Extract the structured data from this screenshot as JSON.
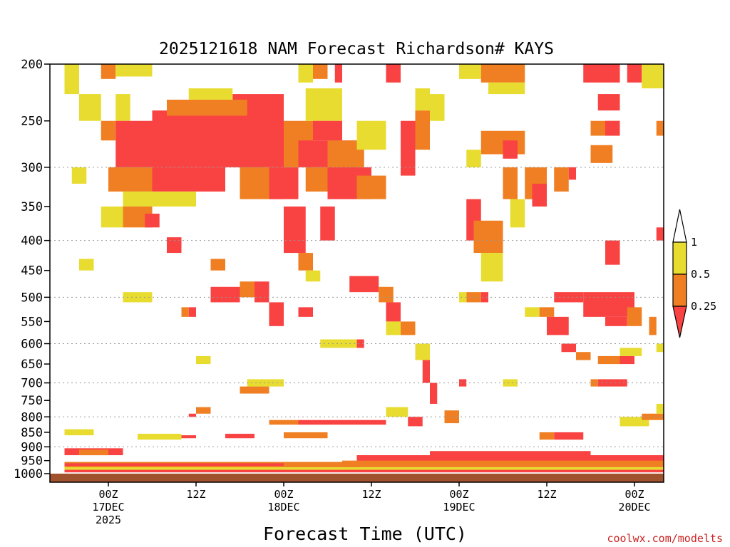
{
  "chart_data": {
    "type": "heatmap",
    "title": "2025121618 NAM Forecast Richardson# KAYS",
    "xlabel": "Forecast Time (UTC)",
    "ylabel": "",
    "credit": "coolwx.com/modelts",
    "y_scale": "log-pressure",
    "ylim": [
      1000,
      200
    ],
    "y_ticks": [
      "200",
      "250",
      "300",
      "350",
      "400",
      "450",
      "500",
      "550",
      "600",
      "650",
      "700",
      "750",
      "800",
      "850",
      "900",
      "950",
      "1000"
    ],
    "y_gridlines": [
      300,
      400,
      500,
      600,
      700,
      800,
      900
    ],
    "x_unit": "hours since 2025-12-16 18Z",
    "xlim": [
      -2,
      82
    ],
    "x_ticks": [
      {
        "hour": 6,
        "lines": [
          "00Z",
          "17DEC",
          "2025"
        ]
      },
      {
        "hour": 18,
        "lines": [
          "12Z"
        ]
      },
      {
        "hour": 30,
        "lines": [
          "00Z",
          "18DEC"
        ]
      },
      {
        "hour": 42,
        "lines": [
          "12Z"
        ]
      },
      {
        "hour": 54,
        "lines": [
          "00Z",
          "19DEC"
        ]
      },
      {
        "hour": 66,
        "lines": [
          "12Z"
        ]
      },
      {
        "hour": 78,
        "lines": [
          "00Z",
          "20DEC"
        ]
      }
    ],
    "colorbar": {
      "levels": [
        "1",
        "0.5",
        "0.25"
      ],
      "bins": [
        {
          "range": "> 1",
          "color": "#ffffff"
        },
        {
          "range": "0.5 - 1",
          "color": "#e8dc30"
        },
        {
          "range": "0.25 - 0.5",
          "color": "#ef7f22"
        },
        {
          "range": "< 0.25",
          "color": "#f94242"
        }
      ]
    },
    "ground_color": "#a0522d",
    "category_colors": {
      "y": "#e8dc30",
      "o": "#ef7f22",
      "r": "#f94242"
    },
    "regions": [
      {
        "cat": "y",
        "t0": 0,
        "t1": 2,
        "p0": 200,
        "p1": 225
      },
      {
        "cat": "y",
        "t0": 2,
        "t1": 5,
        "p0": 225,
        "p1": 250
      },
      {
        "cat": "o",
        "t0": 5,
        "t1": 7,
        "p0": 250,
        "p1": 270
      },
      {
        "cat": "o",
        "t0": 5,
        "t1": 7,
        "p0": 200,
        "p1": 212
      },
      {
        "cat": "y",
        "t0": 7,
        "t1": 12,
        "p0": 200,
        "p1": 210
      },
      {
        "cat": "y",
        "t0": 7,
        "t1": 9,
        "p0": 225,
        "p1": 250
      },
      {
        "cat": "r",
        "t0": 7,
        "t1": 14,
        "p0": 250,
        "p1": 300
      },
      {
        "cat": "r",
        "t0": 12,
        "t1": 27,
        "p0": 240,
        "p1": 300
      },
      {
        "cat": "r",
        "t0": 23,
        "t1": 30,
        "p0": 225,
        "p1": 300
      },
      {
        "cat": "o",
        "t0": 14,
        "t1": 25,
        "p0": 230,
        "p1": 245
      },
      {
        "cat": "y",
        "t0": 17,
        "t1": 23,
        "p0": 220,
        "p1": 230
      },
      {
        "cat": "o",
        "t0": 6,
        "t1": 12,
        "p0": 300,
        "p1": 330
      },
      {
        "cat": "r",
        "t0": 12,
        "t1": 22,
        "p0": 300,
        "p1": 330
      },
      {
        "cat": "y",
        "t0": 8,
        "t1": 18,
        "p0": 330,
        "p1": 350
      },
      {
        "cat": "o",
        "t0": 8,
        "t1": 12,
        "p0": 350,
        "p1": 380
      },
      {
        "cat": "r",
        "t0": 11,
        "t1": 13,
        "p0": 360,
        "p1": 380
      },
      {
        "cat": "y",
        "t0": 5,
        "t1": 8,
        "p0": 350,
        "p1": 380
      },
      {
        "cat": "y",
        "t0": 1,
        "t1": 3,
        "p0": 300,
        "p1": 320
      },
      {
        "cat": "y",
        "t0": 2,
        "t1": 4,
        "p0": 430,
        "p1": 450
      },
      {
        "cat": "r",
        "t0": 14,
        "t1": 16,
        "p0": 395,
        "p1": 420
      },
      {
        "cat": "o",
        "t0": 20,
        "t1": 22,
        "p0": 430,
        "p1": 450
      },
      {
        "cat": "o",
        "t0": 24,
        "t1": 30,
        "p0": 300,
        "p1": 340
      },
      {
        "cat": "r",
        "t0": 28,
        "t1": 32,
        "p0": 300,
        "p1": 340
      },
      {
        "cat": "o",
        "t0": 30,
        "t1": 34,
        "p0": 250,
        "p1": 300
      },
      {
        "cat": "r",
        "t0": 32,
        "t1": 40,
        "p0": 270,
        "p1": 300
      },
      {
        "cat": "o",
        "t0": 36,
        "t1": 41,
        "p0": 270,
        "p1": 300
      },
      {
        "cat": "y",
        "t0": 33,
        "t1": 38,
        "p0": 220,
        "p1": 250
      },
      {
        "cat": "r",
        "t0": 34,
        "t1": 38,
        "p0": 250,
        "p1": 270
      },
      {
        "cat": "o",
        "t0": 33,
        "t1": 40,
        "p0": 300,
        "p1": 330
      },
      {
        "cat": "r",
        "t0": 36,
        "t1": 42,
        "p0": 300,
        "p1": 340
      },
      {
        "cat": "o",
        "t0": 40,
        "t1": 44,
        "p0": 310,
        "p1": 340
      },
      {
        "cat": "y",
        "t0": 40,
        "t1": 44,
        "p0": 250,
        "p1": 280
      },
      {
        "cat": "y",
        "t0": 32,
        "t1": 34,
        "p0": 200,
        "p1": 215
      },
      {
        "cat": "o",
        "t0": 34,
        "t1": 36,
        "p0": 200,
        "p1": 212
      },
      {
        "cat": "r",
        "t0": 37,
        "t1": 38,
        "p0": 200,
        "p1": 215
      },
      {
        "cat": "r",
        "t0": 44,
        "t1": 46,
        "p0": 200,
        "p1": 215
      },
      {
        "cat": "r",
        "t0": 30,
        "t1": 33,
        "p0": 350,
        "p1": 420
      },
      {
        "cat": "o",
        "t0": 32,
        "t1": 34,
        "p0": 420,
        "p1": 450
      },
      {
        "cat": "y",
        "t0": 33,
        "t1": 35,
        "p0": 450,
        "p1": 470
      },
      {
        "cat": "r",
        "t0": 35,
        "t1": 37,
        "p0": 350,
        "p1": 400
      },
      {
        "cat": "r",
        "t0": 46,
        "t1": 48,
        "p0": 250,
        "p1": 310
      },
      {
        "cat": "o",
        "t0": 48,
        "t1": 50,
        "p0": 240,
        "p1": 280
      },
      {
        "cat": "y",
        "t0": 48,
        "t1": 50,
        "p0": 220,
        "p1": 240
      },
      {
        "cat": "y",
        "t0": 50,
        "t1": 52,
        "p0": 225,
        "p1": 250
      },
      {
        "cat": "y",
        "t0": 54,
        "t1": 57,
        "p0": 200,
        "p1": 212
      },
      {
        "cat": "o",
        "t0": 57,
        "t1": 63,
        "p0": 200,
        "p1": 215
      },
      {
        "cat": "y",
        "t0": 58,
        "t1": 63,
        "p0": 215,
        "p1": 225
      },
      {
        "cat": "o",
        "t0": 57,
        "t1": 63,
        "p0": 260,
        "p1": 285
      },
      {
        "cat": "r",
        "t0": 60,
        "t1": 62,
        "p0": 270,
        "p1": 290
      },
      {
        "cat": "y",
        "t0": 55,
        "t1": 57,
        "p0": 280,
        "p1": 300
      },
      {
        "cat": "r",
        "t0": 55,
        "t1": 57,
        "p0": 340,
        "p1": 400
      },
      {
        "cat": "o",
        "t0": 56,
        "t1": 60,
        "p0": 370,
        "p1": 420
      },
      {
        "cat": "y",
        "t0": 57,
        "t1": 60,
        "p0": 420,
        "p1": 470
      },
      {
        "cat": "o",
        "t0": 60,
        "t1": 62,
        "p0": 300,
        "p1": 340
      },
      {
        "cat": "y",
        "t0": 61,
        "t1": 63,
        "p0": 340,
        "p1": 380
      },
      {
        "cat": "o",
        "t0": 63,
        "t1": 66,
        "p0": 300,
        "p1": 340
      },
      {
        "cat": "r",
        "t0": 64,
        "t1": 66,
        "p0": 320,
        "p1": 350
      },
      {
        "cat": "o",
        "t0": 67,
        "t1": 69,
        "p0": 300,
        "p1": 330
      },
      {
        "cat": "r",
        "t0": 69,
        "t1": 70,
        "p0": 300,
        "p1": 315
      },
      {
        "cat": "r",
        "t0": 71,
        "t1": 76,
        "p0": 200,
        "p1": 215
      },
      {
        "cat": "r",
        "t0": 77,
        "t1": 79,
        "p0": 200,
        "p1": 215
      },
      {
        "cat": "y",
        "t0": 79,
        "t1": 82,
        "p0": 200,
        "p1": 220
      },
      {
        "cat": "r",
        "t0": 73,
        "t1": 76,
        "p0": 225,
        "p1": 240
      },
      {
        "cat": "o",
        "t0": 72,
        "t1": 76,
        "p0": 250,
        "p1": 265
      },
      {
        "cat": "r",
        "t0": 74,
        "t1": 76,
        "p0": 250,
        "p1": 265
      },
      {
        "cat": "o",
        "t0": 72,
        "t1": 75,
        "p0": 275,
        "p1": 295
      },
      {
        "cat": "o",
        "t0": 81,
        "t1": 82,
        "p0": 250,
        "p1": 265
      },
      {
        "cat": "r",
        "t0": 81,
        "t1": 82,
        "p0": 380,
        "p1": 400
      },
      {
        "cat": "r",
        "t0": 74,
        "t1": 76,
        "p0": 400,
        "p1": 440
      },
      {
        "cat": "y",
        "t0": 0,
        "t1": 0,
        "p0": 200,
        "p1": 200
      },
      {
        "cat": "r",
        "t0": 20,
        "t1": 24,
        "p0": 480,
        "p1": 510
      },
      {
        "cat": "o",
        "t0": 24,
        "t1": 26,
        "p0": 470,
        "p1": 500
      },
      {
        "cat": "r",
        "t0": 26,
        "t1": 28,
        "p0": 470,
        "p1": 510
      },
      {
        "cat": "y",
        "t0": 8,
        "t1": 12,
        "p0": 490,
        "p1": 510
      },
      {
        "cat": "r",
        "t0": 17,
        "t1": 18,
        "p0": 520,
        "p1": 540
      },
      {
        "cat": "o",
        "t0": 16,
        "t1": 17,
        "p0": 520,
        "p1": 540
      },
      {
        "cat": "r",
        "t0": 28,
        "t1": 30,
        "p0": 510,
        "p1": 560
      },
      {
        "cat": "r",
        "t0": 32,
        "t1": 34,
        "p0": 520,
        "p1": 540
      },
      {
        "cat": "r",
        "t0": 39,
        "t1": 43,
        "p0": 460,
        "p1": 490
      },
      {
        "cat": "o",
        "t0": 43,
        "t1": 45,
        "p0": 480,
        "p1": 510
      },
      {
        "cat": "r",
        "t0": 44,
        "t1": 46,
        "p0": 510,
        "p1": 550
      },
      {
        "cat": "o",
        "t0": 46,
        "t1": 48,
        "p0": 550,
        "p1": 580
      },
      {
        "cat": "y",
        "t0": 44,
        "t1": 46,
        "p0": 550,
        "p1": 580
      },
      {
        "cat": "y",
        "t0": 35,
        "t1": 40,
        "p0": 590,
        "p1": 610
      },
      {
        "cat": "r",
        "t0": 40,
        "t1": 41,
        "p0": 590,
        "p1": 610
      },
      {
        "cat": "r",
        "t0": 49,
        "t1": 50,
        "p0": 620,
        "p1": 700
      },
      {
        "cat": "r",
        "t0": 50,
        "t1": 51,
        "p0": 700,
        "p1": 760
      },
      {
        "cat": "y",
        "t0": 48,
        "t1": 50,
        "p0": 600,
        "p1": 640
      },
      {
        "cat": "o",
        "t0": 55,
        "t1": 57,
        "p0": 490,
        "p1": 510
      },
      {
        "cat": "r",
        "t0": 57,
        "t1": 58,
        "p0": 490,
        "p1": 510
      },
      {
        "cat": "y",
        "t0": 54,
        "t1": 55,
        "p0": 490,
        "p1": 510
      },
      {
        "cat": "y",
        "t0": 63,
        "t1": 65,
        "p0": 520,
        "p1": 540
      },
      {
        "cat": "o",
        "t0": 65,
        "t1": 67,
        "p0": 520,
        "p1": 540
      },
      {
        "cat": "r",
        "t0": 66,
        "t1": 69,
        "p0": 540,
        "p1": 580
      },
      {
        "cat": "r",
        "t0": 68,
        "t1": 70,
        "p0": 600,
        "p1": 620
      },
      {
        "cat": "o",
        "t0": 70,
        "t1": 72,
        "p0": 620,
        "p1": 640
      },
      {
        "cat": "r",
        "t0": 67,
        "t1": 71,
        "p0": 490,
        "p1": 510
      },
      {
        "cat": "r",
        "t0": 71,
        "t1": 78,
        "p0": 490,
        "p1": 540
      },
      {
        "cat": "r",
        "t0": 74,
        "t1": 77,
        "p0": 540,
        "p1": 560
      },
      {
        "cat": "o",
        "t0": 77,
        "t1": 79,
        "p0": 520,
        "p1": 560
      },
      {
        "cat": "o",
        "t0": 80,
        "t1": 81,
        "p0": 540,
        "p1": 580
      },
      {
        "cat": "y",
        "t0": 81,
        "t1": 82,
        "p0": 600,
        "p1": 620
      },
      {
        "cat": "o",
        "t0": 73,
        "t1": 76,
        "p0": 630,
        "p1": 650
      },
      {
        "cat": "r",
        "t0": 76,
        "t1": 78,
        "p0": 630,
        "p1": 650
      },
      {
        "cat": "y",
        "t0": 76,
        "t1": 79,
        "p0": 610,
        "p1": 630
      },
      {
        "cat": "r",
        "t0": 73,
        "t1": 77,
        "p0": 690,
        "p1": 710
      },
      {
        "cat": "o",
        "t0": 72,
        "t1": 73,
        "p0": 690,
        "p1": 710
      },
      {
        "cat": "y",
        "t0": 60,
        "t1": 62,
        "p0": 690,
        "p1": 710
      },
      {
        "cat": "r",
        "t0": 54,
        "t1": 55,
        "p0": 690,
        "p1": 710
      },
      {
        "cat": "y",
        "t0": 25,
        "t1": 30,
        "p0": 690,
        "p1": 710
      },
      {
        "cat": "o",
        "t0": 24,
        "t1": 28,
        "p0": 710,
        "p1": 730
      },
      {
        "cat": "y",
        "t0": 18,
        "t1": 20,
        "p0": 630,
        "p1": 650
      },
      {
        "cat": "o",
        "t0": 18,
        "t1": 20,
        "p0": 770,
        "p1": 790
      },
      {
        "cat": "r",
        "t0": 17,
        "t1": 18,
        "p0": 790,
        "p1": 800
      },
      {
        "cat": "r",
        "t0": 32,
        "t1": 44,
        "p0": 810,
        "p1": 825
      },
      {
        "cat": "o",
        "t0": 28,
        "t1": 32,
        "p0": 810,
        "p1": 825
      },
      {
        "cat": "y",
        "t0": 44,
        "t1": 47,
        "p0": 770,
        "p1": 800
      },
      {
        "cat": "r",
        "t0": 47,
        "t1": 49,
        "p0": 800,
        "p1": 830
      },
      {
        "cat": "o",
        "t0": 52,
        "t1": 54,
        "p0": 780,
        "p1": 820
      },
      {
        "cat": "y",
        "t0": 76,
        "t1": 80,
        "p0": 800,
        "p1": 830
      },
      {
        "cat": "o",
        "t0": 79,
        "t1": 82,
        "p0": 790,
        "p1": 810
      },
      {
        "cat": "y",
        "t0": 81,
        "t1": 82,
        "p0": 760,
        "p1": 790
      },
      {
        "cat": "r",
        "t0": 67,
        "t1": 71,
        "p0": 850,
        "p1": 875
      },
      {
        "cat": "o",
        "t0": 65,
        "t1": 67,
        "p0": 850,
        "p1": 875
      },
      {
        "cat": "r",
        "t0": 10,
        "t1": 18,
        "p0": 860,
        "p1": 870
      },
      {
        "cat": "r",
        "t0": 22,
        "t1": 26,
        "p0": 855,
        "p1": 870
      },
      {
        "cat": "y",
        "t0": 0,
        "t1": 4,
        "p0": 840,
        "p1": 860
      },
      {
        "cat": "y",
        "t0": 10,
        "t1": 16,
        "p0": 855,
        "p1": 875
      },
      {
        "cat": "o",
        "t0": 30,
        "t1": 36,
        "p0": 850,
        "p1": 870
      },
      {
        "cat": "r",
        "t0": 0,
        "t1": 8,
        "p0": 905,
        "p1": 930
      },
      {
        "cat": "o",
        "t0": 2,
        "t1": 6,
        "p0": 910,
        "p1": 930
      },
      {
        "cat": "r",
        "t0": 40,
        "t1": 82,
        "p0": 930,
        "p1": 955
      },
      {
        "cat": "o",
        "t0": 38,
        "t1": 82,
        "p0": 950,
        "p1": 975
      },
      {
        "cat": "r",
        "t0": 50,
        "t1": 72,
        "p0": 915,
        "p1": 935
      },
      {
        "cat": "y",
        "t0": 0,
        "t1": 82,
        "p0": 975,
        "p1": 990
      },
      {
        "cat": "r",
        "t0": 0,
        "t1": 82,
        "p0": 985,
        "p1": 995
      },
      {
        "cat": "o",
        "t0": 0,
        "t1": 40,
        "p0": 955,
        "p1": 975
      },
      {
        "cat": "r",
        "t0": 0,
        "t1": 30,
        "p0": 960,
        "p1": 970
      }
    ]
  }
}
